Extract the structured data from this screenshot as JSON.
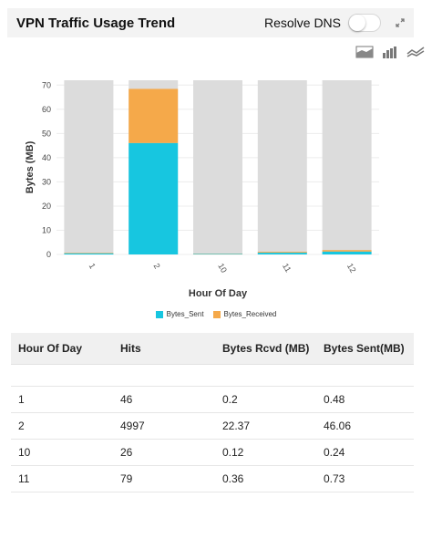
{
  "header": {
    "title": "VPN Traffic Usage Trend",
    "dns_label": "Resolve DNS",
    "dns_enabled": false
  },
  "chart_tools": [
    "area-chart-icon",
    "bar-chart-icon",
    "line-chart-icon"
  ],
  "colors": {
    "sent": "#17c6e0",
    "received": "#f5a94a",
    "background_bar": "#dcdcdc"
  },
  "chart_data": {
    "type": "bar",
    "stacked": true,
    "categories": [
      "1",
      "2",
      "10",
      "11",
      "12"
    ],
    "series": [
      {
        "name": "Bytes_Sent",
        "values": [
          0.48,
          46.06,
          0.24,
          0.73,
          1.2
        ]
      },
      {
        "name": "Bytes_Received",
        "values": [
          0.2,
          22.37,
          0.12,
          0.36,
          0.6
        ]
      }
    ],
    "xlabel": "Hour Of Day",
    "ylabel": "Bytes (MB)",
    "ylim": [
      0,
      72
    ],
    "yticks": [
      0,
      10,
      20,
      30,
      40,
      50,
      60,
      70
    ],
    "legend": "bottom-center",
    "grid": true
  },
  "table": {
    "headers": [
      "Hour Of Day",
      "Hits",
      "Bytes Rcvd (MB)",
      "Bytes Sent(MB)"
    ],
    "rows": [
      [
        "1",
        "46",
        "0.2",
        "0.48"
      ],
      [
        "2",
        "4997",
        "22.37",
        "46.06"
      ],
      [
        "10",
        "26",
        "0.12",
        "0.24"
      ],
      [
        "11",
        "79",
        "0.36",
        "0.73"
      ]
    ]
  }
}
